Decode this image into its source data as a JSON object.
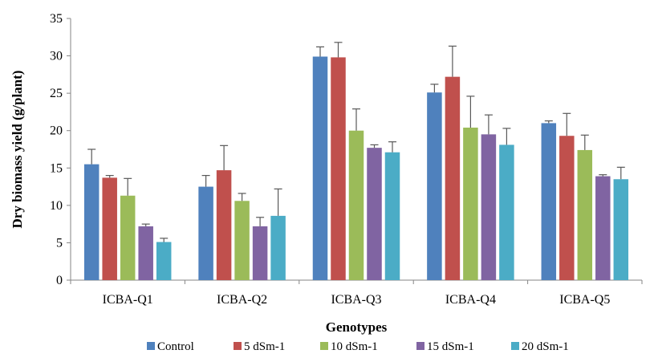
{
  "chart_data": {
    "type": "bar",
    "title": "",
    "xlabel": "Genotypes",
    "ylabel": "Dry biomass yield (g/plant)",
    "ylim": [
      0,
      35
    ],
    "yticks": [
      0,
      5,
      10,
      15,
      20,
      25,
      30,
      35
    ],
    "grid": false,
    "legend_position": "bottom",
    "categories": [
      "ICBA-Q1",
      "ICBA-Q2",
      "ICBA-Q3",
      "ICBA-Q4",
      "ICBA-Q5"
    ],
    "series": [
      {
        "name": "Control",
        "color": "#4F81BD",
        "values": [
          15.5,
          12.5,
          29.9,
          25.1,
          21.0
        ],
        "errors": [
          2.0,
          1.5,
          1.3,
          1.1,
          0.3
        ]
      },
      {
        "name": "5 dSm-1",
        "color": "#C0504D",
        "values": [
          13.7,
          14.7,
          29.8,
          27.2,
          19.3
        ],
        "errors": [
          0.3,
          3.3,
          2.0,
          4.1,
          3.0
        ]
      },
      {
        "name": "10 dSm-1",
        "color": "#9BBB59",
        "values": [
          11.3,
          10.6,
          20.0,
          20.4,
          17.4
        ],
        "errors": [
          2.3,
          1.0,
          2.9,
          4.2,
          2.0
        ]
      },
      {
        "name": "15 dSm-1",
        "color": "#8064A2",
        "values": [
          7.2,
          7.2,
          17.7,
          19.5,
          13.9
        ],
        "errors": [
          0.3,
          1.2,
          0.4,
          2.6,
          0.2
        ]
      },
      {
        "name": "20 dSm-1",
        "color": "#4BACC6",
        "values": [
          5.1,
          8.6,
          17.1,
          18.1,
          13.5
        ],
        "errors": [
          0.5,
          3.6,
          1.4,
          2.2,
          1.6
        ]
      }
    ]
  }
}
